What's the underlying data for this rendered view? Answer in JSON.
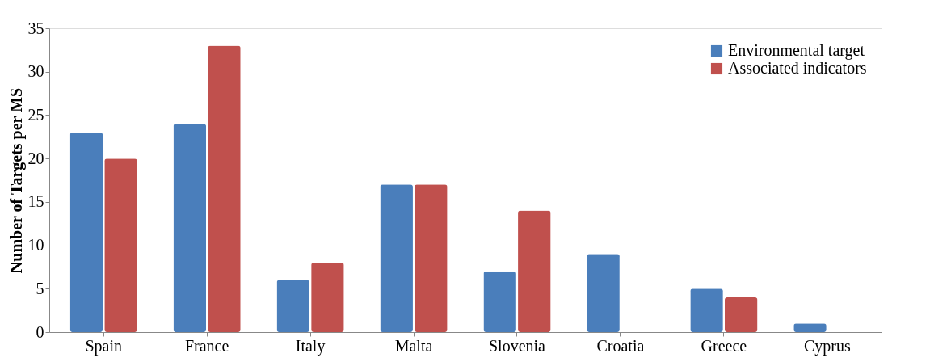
{
  "chart_data": {
    "type": "bar",
    "ylabel": "Number of Targets per MS",
    "categories": [
      "Spain",
      "France",
      "Italy",
      "Malta",
      "Slovenia",
      "Croatia",
      "Greece",
      "Cyprus"
    ],
    "series": [
      {
        "name": "Environmental target",
        "color": "#4a7ebb",
        "values": [
          23,
          24,
          6,
          17,
          7,
          9,
          5,
          1
        ]
      },
      {
        "name": "Associated indicators",
        "color": "#c0504d",
        "values": [
          20,
          33,
          8,
          17,
          14,
          0,
          4,
          0
        ]
      }
    ],
    "ylim": [
      0,
      35
    ],
    "yticks": [
      0,
      5,
      10,
      15,
      20,
      25,
      30,
      35
    ],
    "grid": false,
    "legend": "top right"
  }
}
